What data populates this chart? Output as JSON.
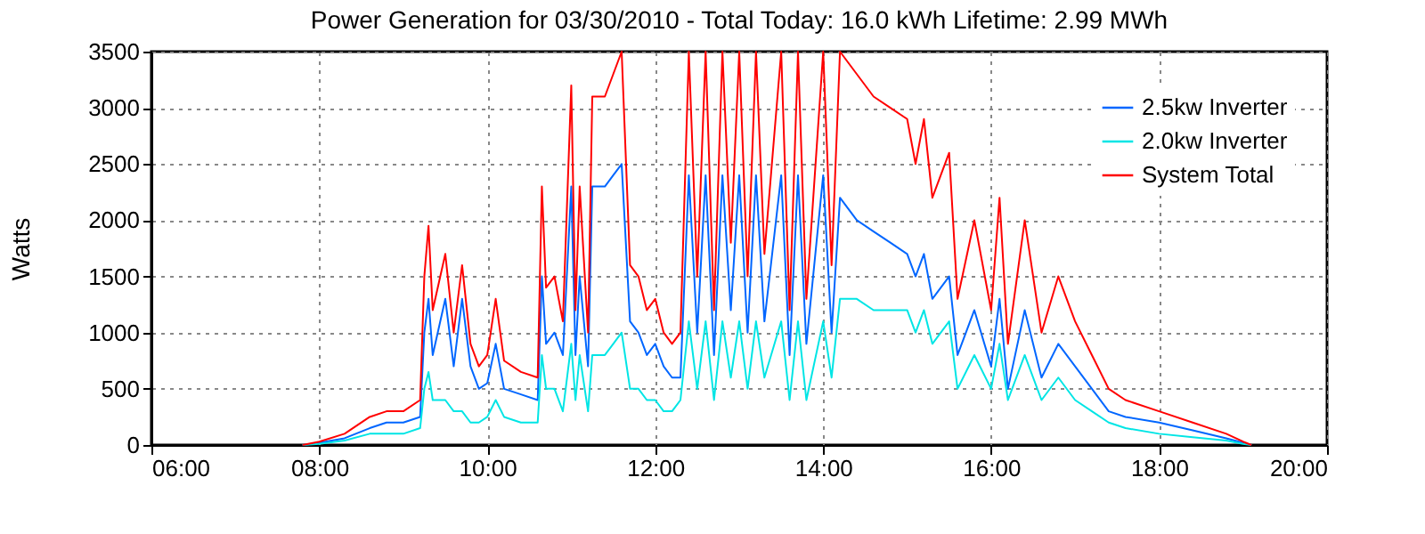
{
  "chart_data": {
    "type": "line",
    "title": "Power Generation for 03/30/2010 - Total Today: 16.0 kWh   Lifetime: 2.99 MWh",
    "ylabel": "Watts",
    "x": [
      7.8,
      8.0,
      8.3,
      8.6,
      8.8,
      9.0,
      9.2,
      9.25,
      9.3,
      9.35,
      9.5,
      9.6,
      9.7,
      9.8,
      9.9,
      10.0,
      10.1,
      10.2,
      10.4,
      10.6,
      10.65,
      10.7,
      10.8,
      10.9,
      11.0,
      11.05,
      11.1,
      11.2,
      11.25,
      11.4,
      11.5,
      11.6,
      11.7,
      11.8,
      11.9,
      12.0,
      12.1,
      12.2,
      12.3,
      12.4,
      12.5,
      12.6,
      12.7,
      12.8,
      12.9,
      13.0,
      13.1,
      13.2,
      13.3,
      13.5,
      13.6,
      13.7,
      13.8,
      14.0,
      14.1,
      14.2,
      14.4,
      14.6,
      14.8,
      15.0,
      15.1,
      15.2,
      15.3,
      15.5,
      15.6,
      15.8,
      16.0,
      16.1,
      16.2,
      16.4,
      16.6,
      16.8,
      17.0,
      17.2,
      17.4,
      17.6,
      18.0,
      18.4,
      18.8,
      19.0,
      19.1
    ],
    "series": [
      {
        "name": "2.5kw Inverter",
        "color": "#0066ff",
        "values": [
          0,
          20,
          60,
          150,
          200,
          200,
          250,
          1000,
          1300,
          800,
          1300,
          700,
          1300,
          700,
          500,
          550,
          900,
          500,
          450,
          400,
          1500,
          900,
          1000,
          800,
          2300,
          800,
          1500,
          700,
          2300,
          2300,
          2400,
          2500,
          1100,
          1000,
          800,
          900,
          700,
          600,
          600,
          2400,
          1000,
          2400,
          800,
          2400,
          1200,
          2400,
          1000,
          2400,
          1100,
          2400,
          800,
          2400,
          900,
          2400,
          1000,
          2200,
          2000,
          1900,
          1800,
          1700,
          1500,
          1700,
          1300,
          1500,
          800,
          1200,
          700,
          1300,
          500,
          1200,
          600,
          900,
          700,
          500,
          300,
          250,
          200,
          130,
          60,
          20,
          0
        ]
      },
      {
        "name": "2.0kw Inverter",
        "color": "#00e5e5",
        "values": [
          0,
          10,
          40,
          100,
          100,
          100,
          150,
          500,
          650,
          400,
          400,
          300,
          300,
          200,
          200,
          250,
          400,
          250,
          200,
          200,
          800,
          500,
          500,
          300,
          900,
          400,
          800,
          300,
          800,
          800,
          900,
          1000,
          500,
          500,
          400,
          400,
          300,
          300,
          400,
          1100,
          500,
          1100,
          400,
          1100,
          600,
          1100,
          500,
          1100,
          600,
          1100,
          400,
          1100,
          400,
          1100,
          600,
          1300,
          1300,
          1200,
          1200,
          1200,
          1000,
          1200,
          900,
          1100,
          500,
          800,
          500,
          900,
          400,
          800,
          400,
          600,
          400,
          300,
          200,
          150,
          100,
          70,
          40,
          10,
          0
        ]
      },
      {
        "name": "System Total",
        "color": "#ff0000",
        "values": [
          0,
          30,
          100,
          250,
          300,
          300,
          400,
          1500,
          1950,
          1200,
          1700,
          1000,
          1600,
          900,
          700,
          800,
          1300,
          750,
          650,
          600,
          2300,
          1400,
          1500,
          1100,
          3200,
          1200,
          2300,
          1000,
          3100,
          3100,
          3300,
          3500,
          1600,
          1500,
          1200,
          1300,
          1000,
          900,
          1000,
          3500,
          1500,
          3500,
          1200,
          3500,
          1800,
          3500,
          1500,
          3500,
          1700,
          3500,
          1200,
          3500,
          1300,
          3500,
          1600,
          3500,
          3300,
          3100,
          3000,
          2900,
          2500,
          2900,
          2200,
          2600,
          1300,
          2000,
          1200,
          2200,
          900,
          2000,
          1000,
          1500,
          1100,
          800,
          500,
          400,
          300,
          200,
          100,
          30,
          0
        ]
      }
    ],
    "xlim": [
      6,
      20
    ],
    "xticks": [
      {
        "value": 6,
        "label": "06:00"
      },
      {
        "value": 8,
        "label": "08:00"
      },
      {
        "value": 10,
        "label": "10:00"
      },
      {
        "value": 12,
        "label": "12:00"
      },
      {
        "value": 14,
        "label": "14:00"
      },
      {
        "value": 16,
        "label": "16:00"
      },
      {
        "value": 18,
        "label": "18:00"
      },
      {
        "value": 20,
        "label": "20:00"
      }
    ],
    "ylim": [
      0,
      3500
    ],
    "yticks": [
      0,
      500,
      1000,
      1500,
      2000,
      2500,
      3000,
      3500
    ],
    "grid": true,
    "legend": "top right",
    "marker": "none",
    "line_style": "solid"
  }
}
